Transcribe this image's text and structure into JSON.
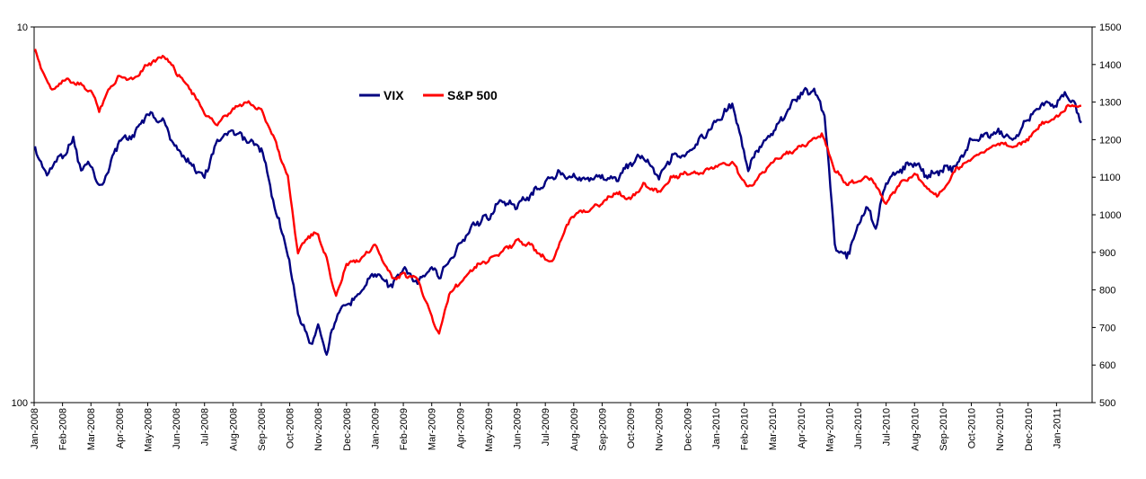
{
  "chart_data": {
    "type": "line",
    "title": "",
    "x_tick_labels": [
      "Jan-2008",
      "Feb-2008",
      "Mar-2008",
      "Apr-2008",
      "May-2008",
      "Jun-2008",
      "Jul-2008",
      "Aug-2008",
      "Sep-2008",
      "Oct-2008",
      "Nov-2008",
      "Dec-2008",
      "Jan-2009",
      "Feb-2009",
      "Mar-2009",
      "Apr-2009",
      "May-2009",
      "Jun-2009",
      "Jul-2009",
      "Aug-2009",
      "Sep-2009",
      "Oct-2009",
      "Nov-2009",
      "Dec-2009",
      "Jan-2010",
      "Feb-2010",
      "Mar-2010",
      "Apr-2010",
      "May-2010",
      "Jun-2010",
      "Jul-2010",
      "Aug-2010",
      "Sep-2010",
      "Oct-2010",
      "Nov-2010",
      "Dec-2010",
      "Jan-2011"
    ],
    "left_axis": {
      "scale": "log",
      "inverted": true,
      "range": [
        10,
        100
      ],
      "tick_labels": [
        "10",
        "100"
      ]
    },
    "right_axis": {
      "scale": "linear",
      "range": [
        500,
        1500
      ],
      "tick_labels": [
        "1500",
        "1400",
        "1300",
        "1200",
        "1100",
        "1000",
        "900",
        "800",
        "700",
        "600",
        "500"
      ]
    },
    "grid": false,
    "legend": {
      "position": "top-left"
    },
    "series": [
      {
        "name": "VIX",
        "color": "#000080",
        "axis": "left",
        "x": [
          "2008-01-02",
          "2008-01-15",
          "2008-01-22",
          "2008-02-01",
          "2008-02-12",
          "2008-02-20",
          "2008-03-01",
          "2008-03-10",
          "2008-03-17",
          "2008-04-01",
          "2008-04-15",
          "2008-05-01",
          "2008-05-19",
          "2008-06-01",
          "2008-06-15",
          "2008-07-01",
          "2008-07-15",
          "2008-08-01",
          "2008-08-15",
          "2008-09-01",
          "2008-09-15",
          "2008-09-29",
          "2008-10-10",
          "2008-10-24",
          "2008-11-01",
          "2008-11-10",
          "2008-11-20",
          "2008-12-01",
          "2008-12-15",
          "2009-01-01",
          "2009-01-20",
          "2009-02-01",
          "2009-02-15",
          "2009-03-01",
          "2009-03-09",
          "2009-03-20",
          "2009-04-01",
          "2009-04-15",
          "2009-05-01",
          "2009-05-15",
          "2009-06-01",
          "2009-06-15",
          "2009-07-01",
          "2009-07-15",
          "2009-08-01",
          "2009-08-15",
          "2009-09-01",
          "2009-09-15",
          "2009-10-01",
          "2009-10-15",
          "2009-11-01",
          "2009-11-15",
          "2009-12-01",
          "2009-12-15",
          "2010-01-01",
          "2010-01-19",
          "2010-02-05",
          "2010-02-15",
          "2010-03-01",
          "2010-03-15",
          "2010-04-01",
          "2010-04-15",
          "2010-04-26",
          "2010-05-07",
          "2010-05-20",
          "2010-06-01",
          "2010-06-10",
          "2010-06-20",
          "2010-07-01",
          "2010-07-15",
          "2010-08-01",
          "2010-08-15",
          "2010-09-01",
          "2010-09-15",
          "2010-10-01",
          "2010-10-15",
          "2010-11-01",
          "2010-11-16",
          "2010-12-01",
          "2010-12-15",
          "2011-01-01",
          "2011-01-10",
          "2011-01-20",
          "2011-01-28"
        ],
        "values": [
          21,
          25,
          23,
          22,
          20,
          24,
          23,
          27,
          25,
          20,
          19.5,
          17,
          18,
          21,
          23,
          25,
          20,
          19,
          20,
          21,
          30,
          40,
          58,
          70,
          62,
          74,
          59,
          55,
          51,
          45,
          49,
          44,
          48,
          44,
          46,
          42,
          38,
          33.5,
          32,
          29,
          30,
          28,
          26,
          24.5,
          25,
          25.5,
          25,
          25.5,
          23,
          22,
          25,
          22,
          22,
          20,
          18,
          16,
          24,
          21,
          19,
          17,
          15,
          14.8,
          17,
          38,
          41,
          34,
          30,
          34,
          26,
          24,
          23,
          25,
          24,
          23.5,
          20,
          19.5,
          19,
          20,
          17.5,
          16,
          16,
          15,
          16,
          18
        ]
      },
      {
        "name": "S&P 500",
        "color": "#ff0000",
        "axis": "right",
        "x": [
          "2008-01-02",
          "2008-01-10",
          "2008-01-22",
          "2008-02-01",
          "2008-02-15",
          "2008-03-01",
          "2008-03-10",
          "2008-03-20",
          "2008-04-01",
          "2008-04-15",
          "2008-05-01",
          "2008-05-19",
          "2008-06-01",
          "2008-06-15",
          "2008-07-01",
          "2008-07-15",
          "2008-08-01",
          "2008-08-15",
          "2008-09-01",
          "2008-09-15",
          "2008-09-29",
          "2008-10-10",
          "2008-10-20",
          "2008-11-01",
          "2008-11-10",
          "2008-11-20",
          "2008-12-01",
          "2008-12-15",
          "2009-01-01",
          "2009-01-20",
          "2009-02-01",
          "2009-02-15",
          "2009-03-01",
          "2009-03-09",
          "2009-03-20",
          "2009-04-01",
          "2009-04-15",
          "2009-05-01",
          "2009-05-15",
          "2009-06-01",
          "2009-06-15",
          "2009-07-01",
          "2009-07-10",
          "2009-07-20",
          "2009-08-01",
          "2009-08-15",
          "2009-09-01",
          "2009-09-15",
          "2009-10-01",
          "2009-10-15",
          "2009-11-01",
          "2009-11-15",
          "2009-12-01",
          "2009-12-15",
          "2010-01-01",
          "2010-01-19",
          "2010-02-05",
          "2010-02-15",
          "2010-03-01",
          "2010-03-15",
          "2010-04-01",
          "2010-04-23",
          "2010-05-07",
          "2010-05-20",
          "2010-06-01",
          "2010-06-15",
          "2010-07-01",
          "2010-07-15",
          "2010-08-01",
          "2010-08-15",
          "2010-08-27",
          "2010-09-15",
          "2010-10-01",
          "2010-10-15",
          "2010-11-01",
          "2010-11-16",
          "2010-12-01",
          "2010-12-15",
          "2011-01-01",
          "2011-01-15",
          "2011-01-28"
        ],
        "values": [
          1440,
          1380,
          1330,
          1360,
          1350,
          1330,
          1280,
          1330,
          1370,
          1360,
          1400,
          1425,
          1380,
          1340,
          1270,
          1240,
          1280,
          1300,
          1280,
          1200,
          1100,
          900,
          940,
          950,
          880,
          780,
          870,
          880,
          920,
          830,
          840,
          830,
          730,
          680,
          790,
          820,
          860,
          880,
          900,
          930,
          920,
          880,
          880,
          950,
          1000,
          1010,
          1030,
          1060,
          1040,
          1080,
          1060,
          1100,
          1110,
          1110,
          1130,
          1140,
          1070,
          1100,
          1140,
          1160,
          1180,
          1215,
          1120,
          1080,
          1090,
          1100,
          1030,
          1080,
          1110,
          1070,
          1050,
          1120,
          1150,
          1170,
          1190,
          1180,
          1200,
          1240,
          1260,
          1290,
          1290
        ]
      }
    ]
  }
}
